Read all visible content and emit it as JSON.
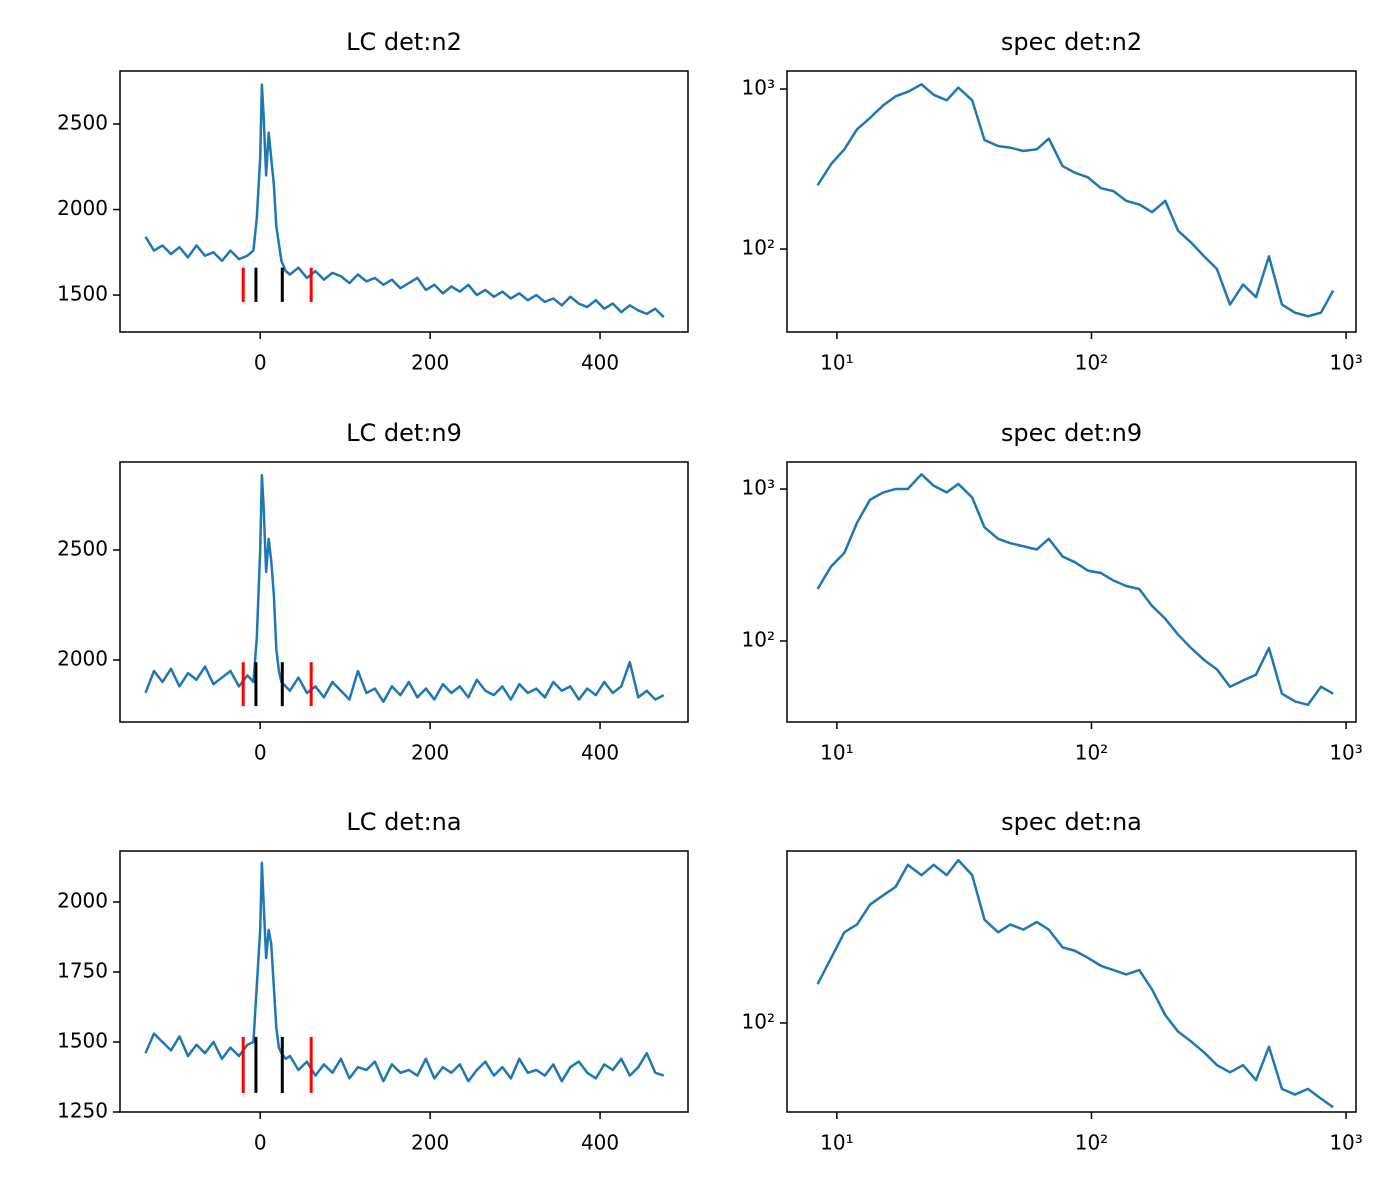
{
  "chart_data": [
    {
      "type": "line",
      "title": "LC det:n2",
      "color": "#1f77b4",
      "x": [
        -135,
        -125,
        -115,
        -105,
        -95,
        -85,
        -75,
        -65,
        -55,
        -45,
        -35,
        -25,
        -15,
        -8,
        -4,
        0,
        2,
        4,
        7,
        10,
        13,
        16,
        19,
        22,
        25,
        30,
        35,
        45,
        55,
        65,
        75,
        85,
        95,
        105,
        115,
        125,
        135,
        145,
        155,
        165,
        175,
        185,
        195,
        205,
        215,
        225,
        235,
        245,
        255,
        265,
        275,
        285,
        295,
        305,
        315,
        325,
        335,
        345,
        355,
        365,
        375,
        385,
        395,
        405,
        415,
        425,
        435,
        445,
        455,
        465,
        475
      ],
      "values": [
        1840,
        1760,
        1790,
        1740,
        1780,
        1720,
        1790,
        1730,
        1750,
        1700,
        1760,
        1710,
        1730,
        1760,
        1950,
        2300,
        2730,
        2550,
        2200,
        2450,
        2300,
        2150,
        1900,
        1800,
        1700,
        1640,
        1620,
        1660,
        1600,
        1640,
        1590,
        1630,
        1610,
        1570,
        1620,
        1580,
        1600,
        1560,
        1590,
        1540,
        1570,
        1600,
        1530,
        1560,
        1510,
        1550,
        1520,
        1560,
        1500,
        1530,
        1490,
        1520,
        1480,
        1510,
        1470,
        1500,
        1460,
        1480,
        1440,
        1490,
        1450,
        1430,
        1470,
        1420,
        1450,
        1400,
        1440,
        1410,
        1390,
        1420,
        1370
      ],
      "xlim": [
        -165,
        503.5
      ],
      "ylim": [
        1284,
        2810
      ],
      "xticks": [
        0,
        200,
        400
      ],
      "yticks": [
        1500,
        2000,
        2500
      ],
      "vlines": {
        "x": [
          -20,
          -5,
          26,
          60
        ],
        "colors": [
          "#ff0000",
          "#000000",
          "#000000",
          "#ff0000"
        ],
        "ymin": 1460,
        "ymax": 1660
      }
    },
    {
      "type": "line",
      "title": "spec det:n2",
      "color": "#1f77b4",
      "xscale": "log",
      "yscale": "log",
      "x": [
        8.4,
        9.5,
        10.7,
        12,
        13.5,
        15.2,
        17,
        19,
        21.5,
        24,
        27,
        30,
        34,
        38,
        43,
        48,
        54,
        61,
        68,
        77,
        86,
        97,
        109,
        122,
        137,
        154,
        173,
        195,
        219,
        246,
        277,
        311,
        350,
        394,
        443,
        498,
        560,
        630,
        708,
        797,
        890
      ],
      "values": [
        250,
        340,
        420,
        560,
        660,
        790,
        900,
        960,
        1070,
        920,
        850,
        1020,
        850,
        480,
        440,
        430,
        410,
        420,
        490,
        330,
        300,
        280,
        240,
        230,
        200,
        190,
        170,
        200,
        130,
        110,
        90,
        75,
        45,
        60,
        50,
        90,
        45,
        40,
        38,
        40,
        55
      ],
      "xlim": [
        6.37,
        1094
      ],
      "ylim": [
        30.3,
        1296
      ],
      "xticks": [
        {
          "value": 10,
          "label": "10¹"
        },
        {
          "value": 100,
          "label": "10²"
        },
        {
          "value": 1000,
          "label": "10³"
        }
      ],
      "yticks": [
        {
          "value": 100,
          "label": "10²"
        },
        {
          "value": 1000,
          "label": "10³"
        }
      ]
    },
    {
      "type": "line",
      "title": "LC det:n9",
      "color": "#1f77b4",
      "x": [
        -135,
        -125,
        -115,
        -105,
        -95,
        -85,
        -75,
        -65,
        -55,
        -45,
        -35,
        -25,
        -15,
        -8,
        -4,
        0,
        2,
        4,
        7,
        10,
        13,
        16,
        19,
        22,
        25,
        30,
        35,
        45,
        55,
        65,
        75,
        85,
        95,
        105,
        115,
        125,
        135,
        145,
        155,
        165,
        175,
        185,
        195,
        205,
        215,
        225,
        235,
        245,
        255,
        265,
        275,
        285,
        295,
        305,
        315,
        325,
        335,
        345,
        355,
        365,
        375,
        385,
        395,
        405,
        415,
        425,
        435,
        445,
        455,
        465,
        475
      ],
      "values": [
        1850,
        1950,
        1900,
        1960,
        1880,
        1940,
        1910,
        1970,
        1890,
        1920,
        1950,
        1880,
        1930,
        1900,
        2100,
        2500,
        2840,
        2700,
        2400,
        2550,
        2450,
        2300,
        2050,
        1950,
        1900,
        1880,
        1860,
        1920,
        1850,
        1880,
        1830,
        1900,
        1860,
        1820,
        1950,
        1850,
        1870,
        1810,
        1880,
        1840,
        1900,
        1830,
        1870,
        1820,
        1890,
        1850,
        1880,
        1830,
        1910,
        1860,
        1840,
        1880,
        1820,
        1890,
        1850,
        1870,
        1830,
        1900,
        1860,
        1880,
        1820,
        1870,
        1840,
        1900,
        1850,
        1880,
        1990,
        1830,
        1860,
        1820,
        1840
      ],
      "xlim": [
        -165,
        503.5
      ],
      "ylim": [
        1718,
        2900
      ],
      "xticks": [
        0,
        200,
        400
      ],
      "yticks": [
        2000,
        2500
      ],
      "vlines": {
        "x": [
          -20,
          -5,
          26,
          60
        ],
        "colors": [
          "#ff0000",
          "#000000",
          "#000000",
          "#ff0000"
        ],
        "ymin": 1790,
        "ymax": 1990
      }
    },
    {
      "type": "line",
      "title": "spec det:n9",
      "color": "#1f77b4",
      "xscale": "log",
      "yscale": "log",
      "x": [
        8.4,
        9.5,
        10.7,
        12,
        13.5,
        15.2,
        17,
        19,
        21.5,
        24,
        27,
        30,
        34,
        38,
        43,
        48,
        54,
        61,
        68,
        77,
        86,
        97,
        109,
        122,
        137,
        154,
        173,
        195,
        219,
        246,
        277,
        311,
        350,
        394,
        443,
        498,
        560,
        630,
        708,
        797,
        890
      ],
      "values": [
        220,
        310,
        380,
        600,
        850,
        950,
        1000,
        1000,
        1250,
        1050,
        950,
        1080,
        880,
        560,
        470,
        440,
        420,
        400,
        470,
        360,
        330,
        290,
        280,
        250,
        230,
        220,
        170,
        140,
        110,
        90,
        75,
        65,
        50,
        55,
        60,
        90,
        45,
        40,
        38,
        50,
        45
      ],
      "xlim": [
        6.37,
        1094
      ],
      "ylim": [
        29.3,
        1506
      ],
      "xticks": [
        {
          "value": 10,
          "label": "10¹"
        },
        {
          "value": 100,
          "label": "10²"
        },
        {
          "value": 1000,
          "label": "10³"
        }
      ],
      "yticks": [
        {
          "value": 100,
          "label": "10²"
        },
        {
          "value": 1000,
          "label": "10³"
        }
      ]
    },
    {
      "type": "line",
      "title": "LC det:na",
      "color": "#1f77b4",
      "x": [
        -135,
        -125,
        -115,
        -105,
        -95,
        -85,
        -75,
        -65,
        -55,
        -45,
        -35,
        -25,
        -15,
        -8,
        -4,
        0,
        2,
        4,
        7,
        10,
        13,
        16,
        19,
        22,
        25,
        30,
        35,
        45,
        55,
        65,
        75,
        85,
        95,
        105,
        115,
        125,
        135,
        145,
        155,
        165,
        175,
        185,
        195,
        205,
        215,
        225,
        235,
        245,
        255,
        265,
        275,
        285,
        295,
        305,
        315,
        325,
        335,
        345,
        355,
        365,
        375,
        385,
        395,
        405,
        415,
        425,
        435,
        445,
        455,
        465,
        475
      ],
      "values": [
        1460,
        1530,
        1500,
        1470,
        1520,
        1450,
        1490,
        1460,
        1500,
        1440,
        1480,
        1450,
        1490,
        1500,
        1700,
        1900,
        2140,
        2000,
        1800,
        1900,
        1850,
        1700,
        1550,
        1480,
        1460,
        1440,
        1450,
        1400,
        1430,
        1380,
        1420,
        1390,
        1440,
        1370,
        1410,
        1400,
        1430,
        1360,
        1420,
        1390,
        1400,
        1380,
        1440,
        1370,
        1410,
        1390,
        1420,
        1360,
        1400,
        1430,
        1380,
        1410,
        1370,
        1440,
        1390,
        1400,
        1380,
        1420,
        1360,
        1410,
        1430,
        1390,
        1370,
        1420,
        1400,
        1440,
        1380,
        1410,
        1460,
        1390,
        1380
      ],
      "xlim": [
        -165,
        503.5
      ],
      "ylim": [
        1250,
        2182
      ],
      "xticks": [
        0,
        200,
        400
      ],
      "yticks": [
        1250,
        1500,
        1750,
        2000
      ],
      "vlines": {
        "x": [
          -20,
          -5,
          26,
          60
        ],
        "colors": [
          "#ff0000",
          "#000000",
          "#000000",
          "#ff0000"
        ],
        "ymin": 1318,
        "ymax": 1518
      }
    },
    {
      "type": "line",
      "title": "spec det:na",
      "color": "#1f77b4",
      "xscale": "log",
      "yscale": "log",
      "x": [
        8.4,
        9.5,
        10.7,
        12,
        13.5,
        15.2,
        17,
        19,
        21.5,
        24,
        27,
        30,
        34,
        38,
        43,
        48,
        54,
        61,
        68,
        77,
        86,
        97,
        109,
        122,
        137,
        154,
        173,
        195,
        219,
        246,
        277,
        311,
        350,
        394,
        443,
        498,
        560,
        630,
        708,
        797,
        890
      ],
      "values": [
        160,
        220,
        300,
        330,
        420,
        470,
        520,
        680,
        600,
        680,
        600,
        720,
        600,
        350,
        300,
        330,
        310,
        340,
        310,
        250,
        240,
        220,
        200,
        190,
        180,
        190,
        150,
        110,
        90,
        80,
        70,
        60,
        55,
        60,
        50,
        75,
        45,
        42,
        45,
        40,
        36
      ],
      "xlim": [
        6.37,
        1094
      ],
      "ylim": [
        34,
        804
      ],
      "xticks": [
        {
          "value": 10,
          "label": "10¹"
        },
        {
          "value": 100,
          "label": "10²"
        },
        {
          "value": 1000,
          "label": "10³"
        }
      ],
      "yticks": [
        {
          "value": 100,
          "label": "10²"
        }
      ]
    }
  ]
}
